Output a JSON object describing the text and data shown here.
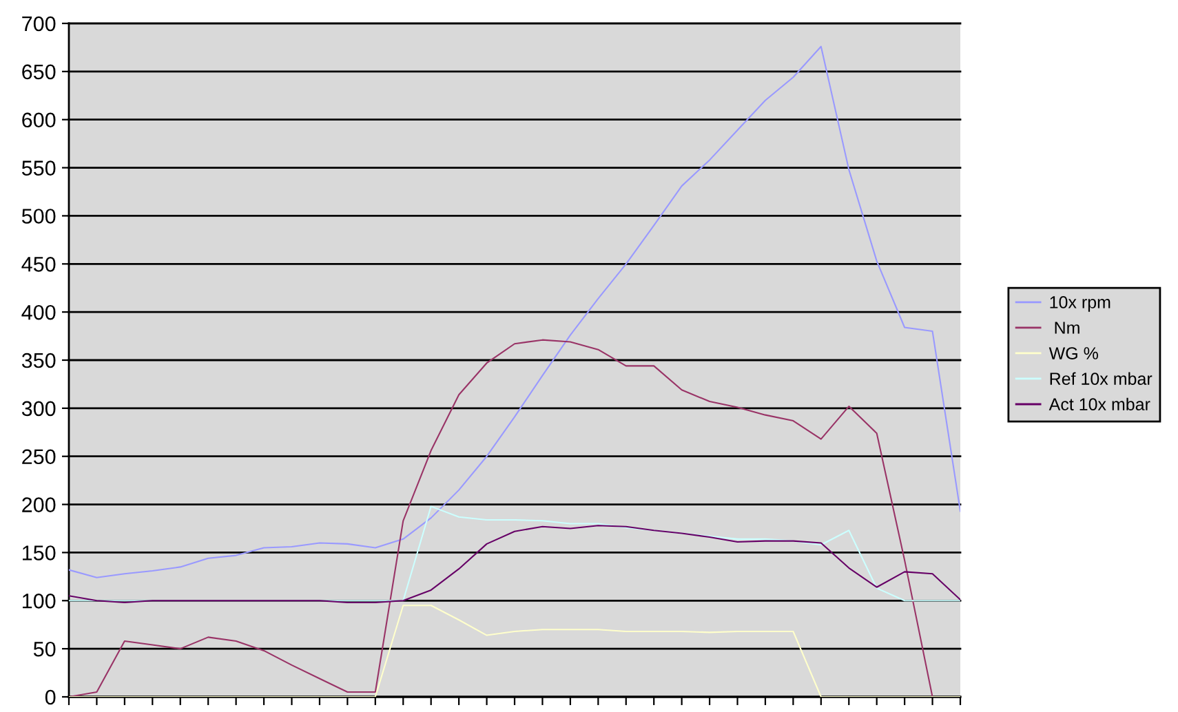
{
  "chart_data": {
    "type": "line",
    "categories": [
      null,
      null,
      null,
      null,
      null,
      null,
      null,
      null,
      null,
      null,
      null,
      null,
      null,
      null,
      null,
      null,
      null,
      null,
      null,
      null,
      null,
      null,
      null,
      null,
      null,
      null,
      null,
      null,
      null,
      null,
      null,
      null,
      null
    ],
    "series": [
      {
        "name": "10x rpm",
        "color": "#9999ff",
        "values": [
          132,
          124,
          128,
          131,
          135,
          144,
          147,
          155,
          156,
          160,
          159,
          155,
          164,
          186,
          215,
          250,
          291,
          334,
          376,
          414,
          450,
          490,
          531,
          558,
          589,
          620,
          644,
          676,
          548,
          453,
          384,
          380,
          193
        ]
      },
      {
        "name": " Nm",
        "color": "#993366",
        "values": [
          0,
          5,
          58,
          54,
          50,
          62,
          58,
          48,
          33,
          19,
          5,
          5,
          183,
          256,
          314,
          347,
          367,
          371,
          369,
          361,
          344,
          344,
          319,
          307,
          301,
          293,
          287,
          268,
          302,
          274,
          142,
          0,
          null
        ]
      },
      {
        "name": "WG %",
        "color": "#ffffcc",
        "values": [
          0,
          0,
          0,
          0,
          0,
          0,
          0,
          0,
          0,
          0,
          0,
          0,
          95,
          95,
          80,
          64,
          68,
          70,
          70,
          70,
          68,
          68,
          68,
          67,
          68,
          68,
          68,
          0,
          0,
          0,
          0,
          0,
          0
        ]
      },
      {
        "name": "Ref 10x mbar",
        "color": "#ccffff",
        "values": [
          100,
          100,
          100,
          100,
          100,
          100,
          100,
          100,
          100,
          100,
          100,
          100,
          100,
          198,
          187,
          184,
          184,
          183,
          180,
          180,
          176,
          173,
          170,
          167,
          164,
          164,
          162,
          158,
          173,
          113,
          100,
          100,
          100
        ]
      },
      {
        "name": "Act 10x mbar",
        "color": "#660066",
        "values": [
          105,
          100,
          98,
          100,
          100,
          100,
          100,
          100,
          100,
          100,
          98,
          98,
          100,
          111,
          133,
          159,
          172,
          177,
          175,
          178,
          177,
          173,
          170,
          166,
          161,
          162,
          162,
          160,
          134,
          114,
          130,
          128,
          101
        ]
      }
    ],
    "ylim": [
      0,
      700
    ],
    "yticks": [
      0,
      50,
      100,
      150,
      200,
      250,
      300,
      350,
      400,
      450,
      500,
      550,
      600,
      650,
      700
    ],
    "grid": "y",
    "legend": "right",
    "tick_labels": "y",
    "marker": "none",
    "line_style": "solid"
  }
}
